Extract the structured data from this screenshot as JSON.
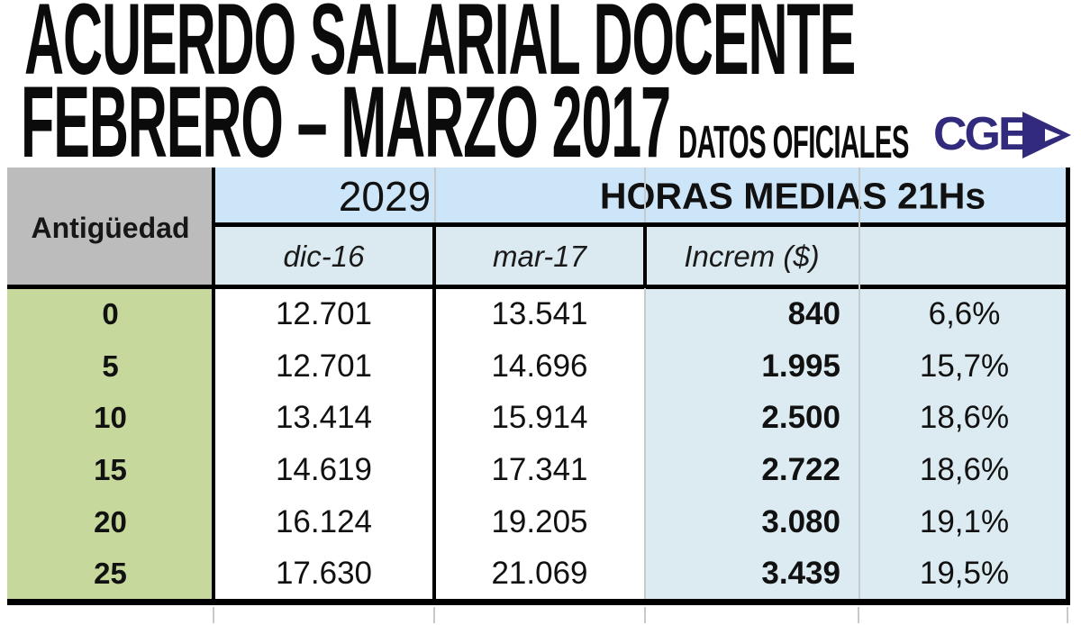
{
  "title": {
    "line1": "ACUERDO SALARIAL DOCENTE",
    "line2": "FEBRERO – MARZO 2017",
    "tagline": "DATOS OFICIALES"
  },
  "logo": {
    "text": "CGE",
    "color": "#312a7d"
  },
  "table": {
    "corner_header": "Antigüedad",
    "group_left": "2029",
    "group_right": "HORAS MEDIAS 21Hs",
    "subheaders": {
      "dic16": "dic-16",
      "mar17": "mar-17",
      "increm": "Increm ($)",
      "pct": ""
    },
    "rows": [
      {
        "ant": "0",
        "dic16": "12.701",
        "mar17": "13.541",
        "increm": "840",
        "pct": "6,6%"
      },
      {
        "ant": "5",
        "dic16": "12.701",
        "mar17": "14.696",
        "increm": "1.995",
        "pct": "15,7%"
      },
      {
        "ant": "10",
        "dic16": "13.414",
        "mar17": "15.914",
        "increm": "2.500",
        "pct": "18,6%"
      },
      {
        "ant": "15",
        "dic16": "14.619",
        "mar17": "17.341",
        "increm": "2.722",
        "pct": "18,6%"
      },
      {
        "ant": "20",
        "dic16": "16.124",
        "mar17": "19.205",
        "increm": "3.080",
        "pct": "19,1%"
      },
      {
        "ant": "25",
        "dic16": "17.630",
        "mar17": "21.069",
        "increm": "3.439",
        "pct": "19,5%"
      }
    ]
  },
  "colors": {
    "group_header_blue": "#cde5f8",
    "subheader_blue": "#daeaf0",
    "body_blue": "#dcebf1",
    "antiguedad_green": "#c6d89b",
    "corner_gray": "#bcbcbc",
    "logo_navy": "#312a7d",
    "grid_black": "#000000",
    "grid_faint": "#c6cbc9"
  },
  "chart_data": {
    "type": "table",
    "title": "ACUERDO SALARIAL DOCENTE FEBRERO – MARZO 2017",
    "subtitle": "DATOS OFICIALES",
    "group_headers": [
      "2029",
      "HORAS MEDIAS 21Hs"
    ],
    "columns": [
      "Antigüedad",
      "dic-16",
      "mar-17",
      "Increm ($)",
      ""
    ],
    "rows": [
      [
        "0",
        "12.701",
        "13.541",
        "840",
        "6,6%"
      ],
      [
        "5",
        "12.701",
        "14.696",
        "1.995",
        "15,7%"
      ],
      [
        "10",
        "13.414",
        "15.914",
        "2.500",
        "18,6%"
      ],
      [
        "15",
        "14.619",
        "17.341",
        "2.722",
        "18,6%"
      ],
      [
        "20",
        "16.124",
        "19.205",
        "3.080",
        "19,1%"
      ],
      [
        "25",
        "17.630",
        "21.069",
        "3.439",
        "19,5%"
      ]
    ]
  }
}
